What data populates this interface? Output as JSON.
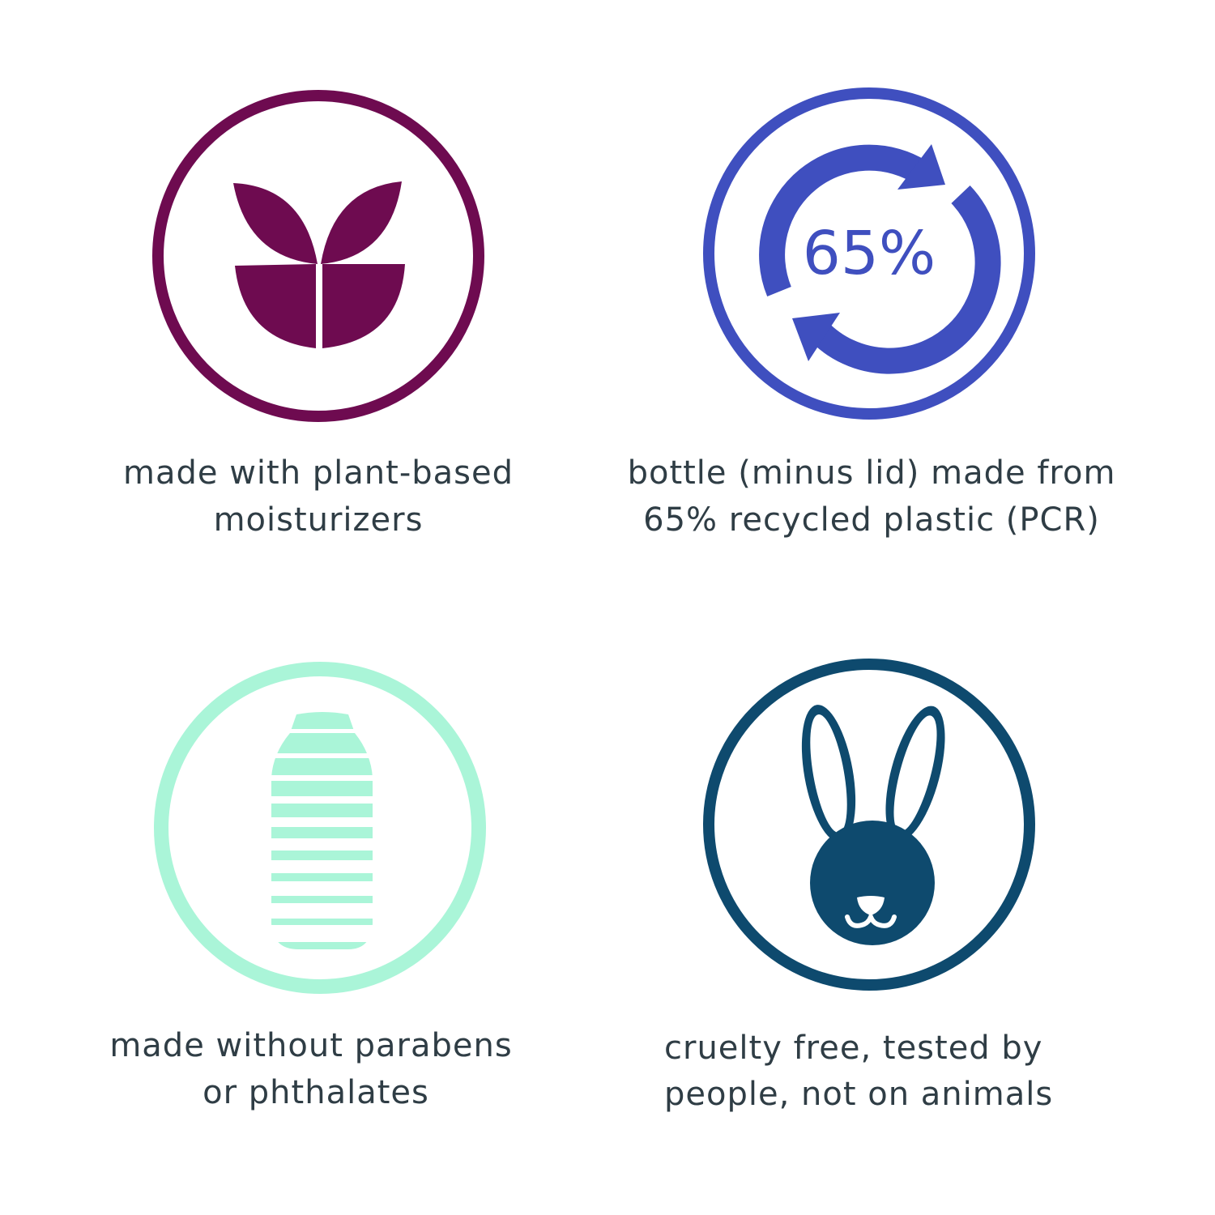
{
  "colors": {
    "plant": "#6e0b50",
    "recycle": "#3f4fbf",
    "paraben": "#aaf5d8",
    "cruelty": "#0e4a6e",
    "text": "#2f3d45"
  },
  "features": [
    {
      "icon": "leaves-icon",
      "lines": [
        "made with plant-based",
        "moisturizers"
      ]
    },
    {
      "icon": "recycle-arrows-icon",
      "badge": "65%",
      "lines": [
        "bottle (minus lid) made from",
        "65% recycled plastic (PCR)"
      ]
    },
    {
      "icon": "striped-bottle-icon",
      "lines": [
        "made without parabens",
        "or phthalates"
      ]
    },
    {
      "icon": "bunny-icon",
      "lines": [
        "cruelty free, tested by",
        "people, not on animals"
      ]
    }
  ]
}
